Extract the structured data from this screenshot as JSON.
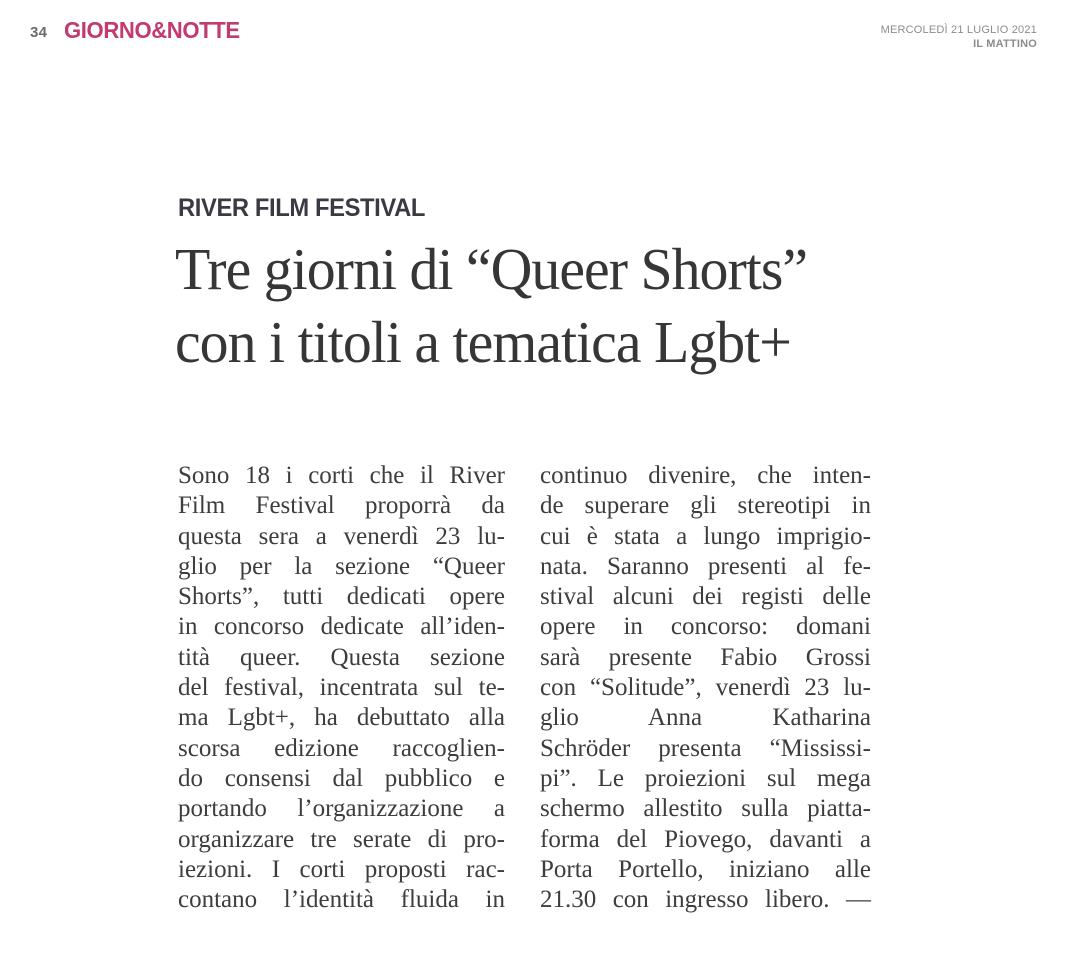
{
  "page": {
    "number": "34",
    "section": "GIORNO&NOTTE",
    "date": "MERCOLEDÌ 21 LUGLIO 2021",
    "masthead": "IL MATTINO"
  },
  "article": {
    "kicker": "RIVER FILM FESTIVAL",
    "headline": [
      "Tre giorni di “Queer Shorts”",
      "con i titoli a tematica Lgbt+"
    ],
    "columns": [
      {
        "lines": [
          "Sono 18 i corti che il River",
          "Film Festival proporrà da",
          "questa sera a venerdì 23 lu-",
          "glio per la sezione “Queer",
          "Shorts”, tutti dedicati opere",
          "in concorso dedicate all’iden-",
          "tità queer. Questa sezione",
          "del festival, incentrata sul te-",
          "ma Lgbt+, ha debuttato alla",
          "scorsa edizione raccoglien-",
          "do consensi dal pubblico e",
          "portando l’organizzazione a",
          "organizzare tre serate di pro-",
          "iezioni. I corti proposti rac-",
          "contano l’identità fluida in"
        ]
      },
      {
        "lines": [
          "continuo divenire, che inten-",
          "de superare gli stereotipi in",
          "cui è stata a lungo imprigio-",
          "nata. Saranno presenti al fe-",
          "stival alcuni dei registi delle",
          "opere in concorso: domani",
          "sarà presente Fabio Grossi",
          "con “Solitude”, venerdì 23 lu-",
          "glio Anna Katharina",
          "Schröder presenta “Mississi-",
          "pi”. Le proiezioni sul mega",
          "schermo allestito sulla piatta-",
          "forma del Piovego, davanti a",
          "Porta Portello, iniziano alle",
          "21.30 con ingresso libero. —"
        ]
      }
    ]
  },
  "colors": {
    "section_accent": "#c23a6e",
    "body_text": "#3e3d3e",
    "headline_text": "#373637",
    "muted_header": "#8d8c8c"
  }
}
